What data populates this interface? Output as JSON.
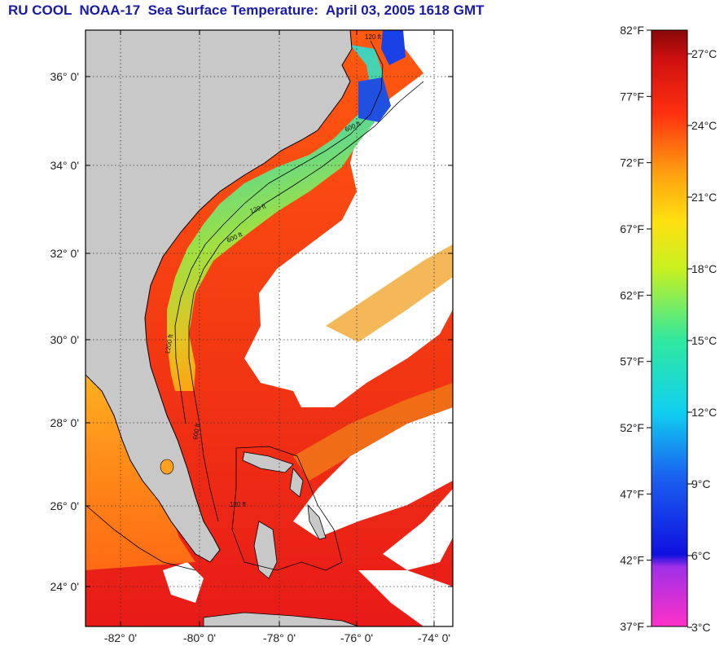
{
  "title": "RU COOL  NOAA-17  Sea Surface Temperature:  April 03, 2005 1618 GMT",
  "map": {
    "lat_labels": [
      "36° 0'",
      "34° 0'",
      "32° 0'",
      "30° 0'",
      "28° 0'",
      "26° 0'",
      "24° 0'"
    ],
    "lon_labels": [
      "-82° 0'",
      "-80° 0'",
      "-78° 0'",
      "-76° 0'",
      "-74° 0'"
    ],
    "contour_labels": [
      "120 ft",
      "600 ft",
      "120 ft",
      "600 ft",
      "1200 ft",
      "600 ft",
      "120 ft"
    ],
    "colors": {
      "land": "#c8c8c8",
      "cloud": "#ffffff",
      "coast": "#000000"
    }
  },
  "colorbar": {
    "fahrenheit_labels": [
      "82°F",
      "77°F",
      "72°F",
      "67°F",
      "62°F",
      "57°F",
      "52°F",
      "47°F",
      "42°F",
      "37°F"
    ],
    "celsius_labels": [
      "27°C",
      "24°C",
      "21°C",
      "18°C",
      "15°C",
      "12°C",
      "9°C",
      "6°C",
      "3°C"
    ],
    "range_celsius": [
      3,
      28
    ]
  }
}
